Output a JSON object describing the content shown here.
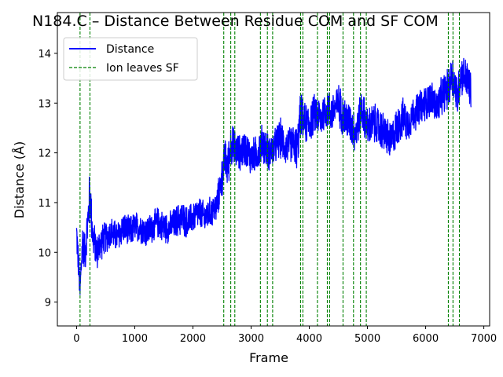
{
  "chart_data": {
    "type": "line",
    "title": "N184.C – Distance Between Residue COM and SF COM",
    "xlabel": "Frame",
    "ylabel": "Distance (Å)",
    "xlim": [
      -330,
      7100
    ],
    "ylim": [
      8.52,
      14.82
    ],
    "xticks": [
      0,
      1000,
      2000,
      3000,
      4000,
      5000,
      6000,
      7000
    ],
    "yticks": [
      9,
      10,
      11,
      12,
      13,
      14
    ],
    "grid": false,
    "legend_position": "top-left",
    "series": [
      {
        "name": "Distance",
        "color": "#0000ff",
        "style": "solid",
        "x": [
          0,
          60,
          100,
          150,
          200,
          230,
          280,
          350,
          420,
          500,
          600,
          700,
          800,
          900,
          1000,
          1100,
          1200,
          1300,
          1400,
          1500,
          1600,
          1700,
          1800,
          1900,
          2000,
          2100,
          2200,
          2300,
          2400,
          2500,
          2550,
          2600,
          2650,
          2700,
          2800,
          2900,
          3000,
          3100,
          3200,
          3300,
          3400,
          3500,
          3600,
          3700,
          3800,
          3850,
          3900,
          4000,
          4100,
          4200,
          4300,
          4400,
          4500,
          4600,
          4700,
          4800,
          4900,
          5000,
          5100,
          5200,
          5300,
          5400,
          5500,
          5600,
          5700,
          5800,
          5900,
          6000,
          6100,
          6200,
          6300,
          6400,
          6450,
          6500,
          6550,
          6600,
          6700,
          6780
        ],
        "y": [
          10.4,
          9.2,
          10.2,
          10.0,
          10.7,
          11.2,
          10.3,
          10.0,
          10.2,
          10.3,
          10.4,
          10.3,
          10.5,
          10.4,
          10.5,
          10.5,
          10.4,
          10.5,
          10.6,
          10.5,
          10.5,
          10.6,
          10.7,
          10.6,
          10.7,
          10.8,
          10.7,
          10.8,
          10.9,
          11.5,
          11.9,
          11.7,
          12.2,
          12.1,
          12.0,
          12.1,
          11.9,
          12.0,
          12.2,
          12.0,
          12.1,
          12.3,
          12.1,
          12.2,
          12.1,
          12.8,
          12.6,
          12.6,
          12.8,
          12.7,
          12.9,
          12.8,
          13.0,
          12.7,
          12.6,
          12.4,
          12.9,
          12.5,
          12.6,
          12.5,
          12.4,
          12.2,
          12.5,
          12.7,
          12.6,
          12.8,
          12.9,
          13.0,
          13.1,
          12.9,
          13.2,
          13.3,
          13.6,
          13.4,
          13.1,
          13.6,
          13.5,
          13.2
        ],
        "noise": [
          0.4,
          0.4,
          0.5,
          0.4,
          0.6,
          0.6,
          0.45,
          0.4,
          0.4,
          0.35,
          0.35,
          0.35,
          0.35,
          0.35,
          0.35,
          0.35,
          0.35,
          0.35,
          0.35,
          0.35,
          0.35,
          0.35,
          0.4,
          0.35,
          0.35,
          0.35,
          0.35,
          0.35,
          0.35,
          0.45,
          0.45,
          0.5,
          0.5,
          0.45,
          0.4,
          0.4,
          0.4,
          0.4,
          0.45,
          0.4,
          0.4,
          0.45,
          0.4,
          0.4,
          0.5,
          0.5,
          0.45,
          0.45,
          0.45,
          0.45,
          0.45,
          0.45,
          0.45,
          0.5,
          0.45,
          0.45,
          0.45,
          0.45,
          0.45,
          0.45,
          0.45,
          0.45,
          0.45,
          0.45,
          0.4,
          0.4,
          0.4,
          0.4,
          0.4,
          0.4,
          0.45,
          0.45,
          0.5,
          0.5,
          0.45,
          0.45,
          0.45,
          0.45
        ]
      },
      {
        "name": "Ion leaves SF",
        "color": "#008000",
        "style": "dashed",
        "vlines": [
          60,
          230,
          2530,
          2650,
          2720,
          3160,
          3280,
          3370,
          3850,
          3890,
          4140,
          4310,
          4350,
          4580,
          4760,
          4880,
          4980,
          6390,
          6470,
          6580
        ]
      }
    ]
  }
}
